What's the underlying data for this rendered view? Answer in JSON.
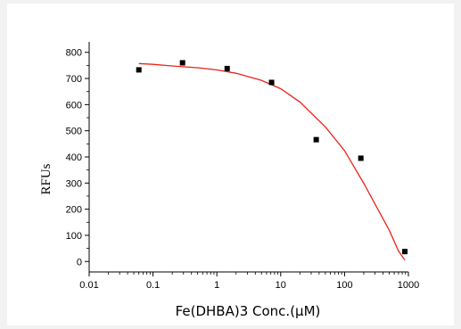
{
  "chart_data": {
    "type": "scatter",
    "title": "",
    "xlabel": "Fe(DHBA)3 Conc.(μM)",
    "ylabel": "RFUs",
    "x_scale": "log",
    "xlim": [
      0.01,
      1000
    ],
    "ylim": [
      -40,
      840
    ],
    "x_ticks": [
      0.01,
      0.1,
      1,
      10,
      100,
      1000
    ],
    "x_tick_labels": [
      "0.01",
      "0.1",
      "1",
      "10",
      "100",
      "1000"
    ],
    "y_ticks": [
      0,
      100,
      200,
      300,
      400,
      500,
      600,
      700,
      800
    ],
    "y_tick_labels": [
      "0",
      "100",
      "200",
      "300",
      "400",
      "500",
      "600",
      "700",
      "800"
    ],
    "grid": false,
    "series": [
      {
        "type": "scatter",
        "marker": "square",
        "color": "#000000",
        "x": [
          0.06,
          0.29,
          1.45,
          7.2,
          36,
          180,
          880
        ],
        "y": [
          733,
          760,
          738,
          685,
          466,
          395,
          38
        ]
      },
      {
        "type": "line",
        "color": "#e8241c",
        "x": [
          0.06,
          0.1,
          0.2,
          0.5,
          1,
          2,
          5,
          10,
          20,
          50,
          100,
          200,
          300,
          500,
          700,
          880
        ],
        "y": [
          757,
          754,
          748,
          741,
          733,
          720,
          693,
          661,
          610,
          515,
          424,
          299,
          220,
          120,
          40,
          5
        ]
      }
    ]
  }
}
